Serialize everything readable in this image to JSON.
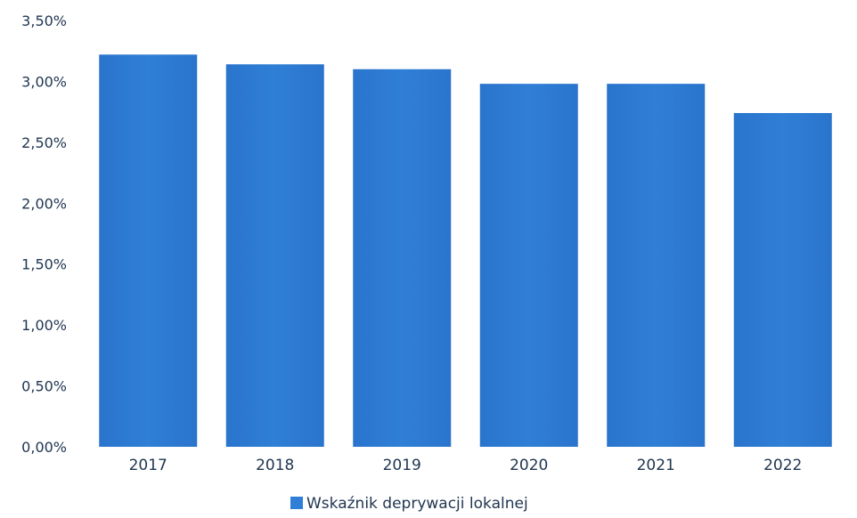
{
  "chart_data": {
    "type": "bar",
    "categories": [
      "2017",
      "2018",
      "2019",
      "2020",
      "2021",
      "2022"
    ],
    "series": [
      {
        "name": "Wskaźnik deprywacji lokalnej",
        "values": [
          3.22,
          3.14,
          3.1,
          2.98,
          2.98,
          2.74
        ],
        "color": "#2f7fd6"
      }
    ],
    "ylim": [
      0,
      3.5
    ],
    "yticks": [
      0,
      0.5,
      1,
      1.5,
      2,
      2.5,
      3,
      3.5
    ],
    "ytick_labels": [
      "0,00%",
      "0,50%",
      "1,00%",
      "1,50%",
      "2,00%",
      "2,50%",
      "3,00%",
      "3,50%"
    ],
    "grid": false,
    "legend": "bottom-center",
    "title": "",
    "xlabel": "",
    "ylabel": ""
  }
}
